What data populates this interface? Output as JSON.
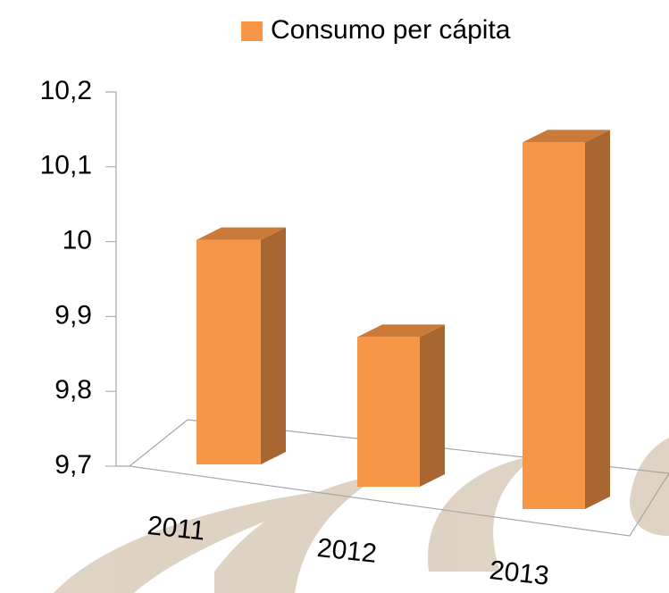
{
  "chart_data": {
    "type": "bar3d",
    "categories": [
      "2011",
      "2012",
      "2013"
    ],
    "series": [
      {
        "name": "Consumo per cápita",
        "color": "#f79646",
        "values": [
          10.0,
          9.9,
          10.19
        ]
      }
    ],
    "ylim": [
      9.7,
      10.2
    ],
    "yticks": [
      {
        "value": 9.7,
        "label": "9,7"
      },
      {
        "value": 9.8,
        "label": "9,8"
      },
      {
        "value": 9.9,
        "label": "9,9"
      },
      10,
      {
        "value": 10.1,
        "label": "10,1"
      },
      {
        "value": 10.2,
        "label": "10,2"
      }
    ],
    "legend": "top"
  }
}
